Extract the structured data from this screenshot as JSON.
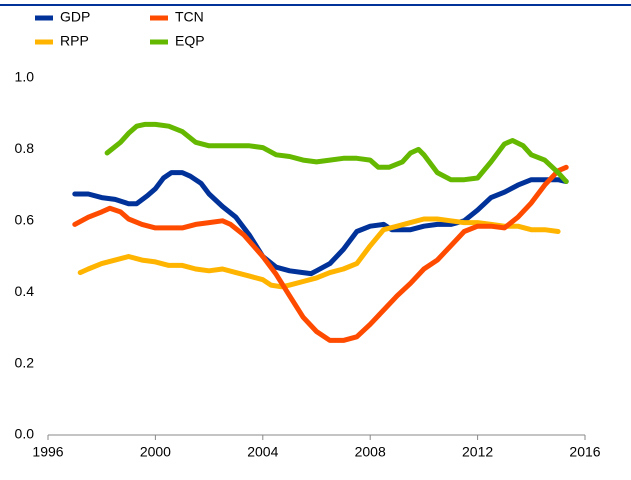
{
  "chart_data": {
    "type": "line",
    "xlim": [
      1996,
      2016
    ],
    "xticks": [
      1996,
      2000,
      2004,
      2008,
      2012,
      2016
    ],
    "ylim": [
      0,
      1
    ],
    "yticks": [
      {
        "value": 0,
        "label": "0.0"
      },
      0.2,
      0.4,
      0.6,
      0.8,
      {
        "value": 1,
        "label": "1.0"
      }
    ],
    "grid": false,
    "legend": "top-left",
    "series": [
      {
        "name": "GDP",
        "color": "#003299",
        "x": [
          1997,
          1997.5,
          1998,
          1998.5,
          1999,
          1999.3,
          1999.7,
          2000,
          2000.3,
          2000.6,
          2001,
          2001.3,
          2001.7,
          2002,
          2002.5,
          2003,
          2003.5,
          2004,
          2004.5,
          2005,
          2005.5,
          2005.8,
          2006,
          2006.5,
          2007,
          2007.5,
          2008,
          2008.5,
          2008.8,
          2009.5,
          2010,
          2010.5,
          2011,
          2011.5,
          2012,
          2012.5,
          2013,
          2013.5,
          2014,
          2014.5,
          2015,
          2015.3
        ],
        "values": [
          0.675,
          0.675,
          0.665,
          0.66,
          0.648,
          0.648,
          0.67,
          0.69,
          0.72,
          0.735,
          0.735,
          0.725,
          0.705,
          0.675,
          0.64,
          0.61,
          0.56,
          0.5,
          0.47,
          0.46,
          0.455,
          0.452,
          0.46,
          0.48,
          0.52,
          0.57,
          0.585,
          0.59,
          0.575,
          0.575,
          0.585,
          0.59,
          0.59,
          0.6,
          0.63,
          0.665,
          0.68,
          0.7,
          0.715,
          0.715,
          0.715,
          0.71
        ]
      },
      {
        "name": "RPP",
        "color": "#ffb400",
        "x": [
          1997.2,
          1997.5,
          1998,
          1998.5,
          1999,
          1999.5,
          2000,
          2000.5,
          2001,
          2001.5,
          2002,
          2002.5,
          2003,
          2003.5,
          2004,
          2004.3,
          2004.7,
          2005,
          2005.5,
          2006,
          2006.5,
          2007,
          2007.5,
          2008,
          2008.5,
          2009,
          2009.5,
          2010,
          2010.5,
          2011,
          2011.5,
          2012,
          2012.5,
          2013,
          2013.5,
          2014,
          2014.5,
          2015
        ],
        "values": [
          0.455,
          0.465,
          0.48,
          0.49,
          0.5,
          0.49,
          0.485,
          0.475,
          0.475,
          0.465,
          0.46,
          0.465,
          0.455,
          0.445,
          0.435,
          0.42,
          0.415,
          0.42,
          0.43,
          0.44,
          0.455,
          0.465,
          0.48,
          0.53,
          0.575,
          0.585,
          0.595,
          0.605,
          0.605,
          0.6,
          0.595,
          0.595,
          0.59,
          0.585,
          0.585,
          0.575,
          0.575,
          0.57
        ]
      },
      {
        "name": "TCN",
        "color": "#ff4b00",
        "x": [
          1997,
          1997.5,
          1998,
          1998.3,
          1998.7,
          1999,
          1999.5,
          2000,
          2000.5,
          2001,
          2001.5,
          2002,
          2002.5,
          2002.8,
          2003.3,
          2004,
          2004.5,
          2005,
          2005.5,
          2006,
          2006.5,
          2007,
          2007.5,
          2008,
          2008.5,
          2009,
          2009.5,
          2010,
          2010.5,
          2011,
          2011.5,
          2012,
          2012.5,
          2013,
          2013.5,
          2014,
          2014.5,
          2015,
          2015.3
        ],
        "values": [
          0.59,
          0.61,
          0.625,
          0.635,
          0.625,
          0.605,
          0.59,
          0.58,
          0.58,
          0.58,
          0.59,
          0.595,
          0.6,
          0.59,
          0.56,
          0.5,
          0.45,
          0.39,
          0.33,
          0.29,
          0.265,
          0.265,
          0.275,
          0.31,
          0.35,
          0.39,
          0.425,
          0.465,
          0.49,
          0.53,
          0.57,
          0.585,
          0.585,
          0.58,
          0.61,
          0.65,
          0.7,
          0.74,
          0.75
        ]
      },
      {
        "name": "EQP",
        "color": "#65b800",
        "x": [
          1998.2,
          1998.7,
          1999,
          1999.3,
          1999.6,
          2000,
          2000.5,
          2001,
          2001.5,
          2002,
          2002.5,
          2003,
          2003.5,
          2004,
          2004.5,
          2005,
          2005.5,
          2006,
          2006.5,
          2007,
          2007.5,
          2008,
          2008.3,
          2008.7,
          2009.2,
          2009.5,
          2009.8,
          2010,
          2010.5,
          2011,
          2011.5,
          2012,
          2012.5,
          2013,
          2013.3,
          2013.7,
          2014,
          2014.5,
          2015,
          2015.3
        ],
        "values": [
          0.79,
          0.82,
          0.845,
          0.865,
          0.87,
          0.87,
          0.865,
          0.85,
          0.82,
          0.81,
          0.81,
          0.81,
          0.81,
          0.805,
          0.785,
          0.78,
          0.77,
          0.765,
          0.77,
          0.775,
          0.775,
          0.77,
          0.75,
          0.75,
          0.765,
          0.79,
          0.8,
          0.785,
          0.735,
          0.715,
          0.715,
          0.72,
          0.765,
          0.815,
          0.825,
          0.81,
          0.785,
          0.77,
          0.735,
          0.71
        ]
      }
    ]
  }
}
